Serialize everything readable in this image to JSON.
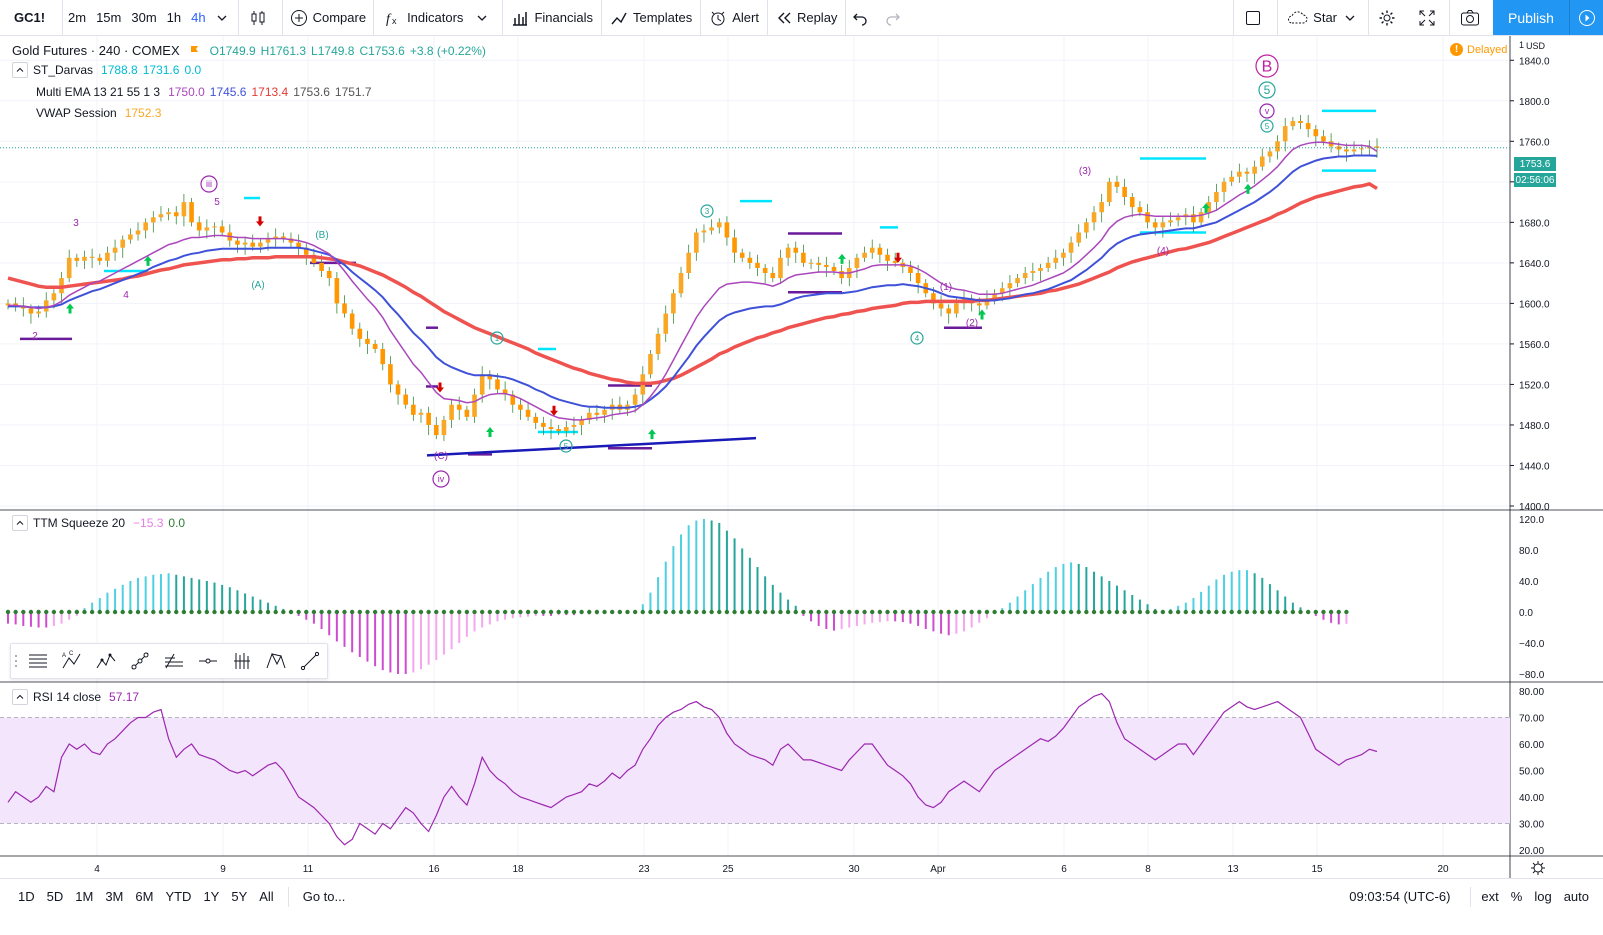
{
  "toolbar": {
    "symbol": "GC1!",
    "intervals": [
      "2m",
      "15m",
      "30m",
      "1h",
      "4h"
    ],
    "active_interval": "4h",
    "compare": "Compare",
    "indicators": "Indicators",
    "financials": "Financials",
    "templates": "Templates",
    "alert": "Alert",
    "replay": "Replay",
    "star": "Star",
    "publish": "Publish"
  },
  "legend": {
    "title": "Gold Futures · 240 · COMEX",
    "open": "O1749.9",
    "high": "H1761.3",
    "low": "L1749.8",
    "close": "C1753.6",
    "change": "+3.8 (+0.22%)",
    "darvas_name": "ST_Darvas",
    "darvas_v1": "1788.8",
    "darvas_v2": "1731.6",
    "darvas_v3": "0.0",
    "ema_name": "Multi EMA 13 21 55 1 3",
    "ema_v1": "1750.0",
    "ema_v2": "1745.6",
    "ema_v3": "1713.4",
    "ema_v4": "1753.6",
    "ema_v5": "1751.7",
    "vwap_name": "VWAP Session",
    "vwap_v": "1752.3",
    "ttm_name": "TTM Squeeze 20",
    "ttm_v1": "−15.3",
    "ttm_v2": "0.0",
    "rsi_name": "RSI 14 close",
    "rsi_v": "57.17",
    "delayed": "Delayed"
  },
  "price_axis": {
    "unit_top": "1",
    "unit": "USD",
    "labels": [
      "1840.0",
      "1800.0",
      "1760.0",
      "1720.0",
      "1680.0",
      "1640.0",
      "1600.0",
      "1560.0",
      "1520.0",
      "1480.0",
      "1440.0",
      "1400.0"
    ],
    "last_price": "1753.6",
    "countdown": "02:56:06"
  },
  "ttm_axis": {
    "labels": [
      "120.0",
      "80.0",
      "40.0",
      "0.0",
      "−40.0",
      "−80.0"
    ]
  },
  "rsi_axis": {
    "labels": [
      "80.00",
      "70.00",
      "60.00",
      "50.00",
      "40.00",
      "30.00",
      "20.00"
    ]
  },
  "time_axis": {
    "labels": [
      "4",
      "9",
      "11",
      "16",
      "18",
      "23",
      "25",
      "30",
      "Apr",
      "6",
      "8",
      "13",
      "15",
      "20"
    ]
  },
  "wave_labels": {
    "iii": "iii",
    "iv": "iv",
    "v": "v",
    "B": "B",
    "five": "5",
    "w1": "1",
    "w2": "2",
    "w3": "3",
    "w4": "4",
    "w5": "5",
    "A": "(A)",
    "Bp": "(B)",
    "C": "(C)",
    "p1": "(1)",
    "p2": "(2)",
    "p3": "(3)",
    "p4": "(4)",
    "c1": "1",
    "c3": "3",
    "c4": "4",
    "c5": "5",
    "c5b": "5"
  },
  "bottom": {
    "ranges": [
      "1D",
      "5D",
      "1M",
      "3M",
      "6M",
      "YTD",
      "1Y",
      "5Y",
      "All"
    ],
    "goto": "Go to...",
    "time": "09:03:54 (UTC-6)",
    "ext": "ext",
    "percent": "%",
    "log": "log",
    "auto": "auto"
  },
  "colors": {
    "up": "#f9a825",
    "down": "#ff9800",
    "ema13": "#ab47bc",
    "ema21": "#3f51d8",
    "ema55": "#ef5350",
    "accent": "#2196f3",
    "rsi": "#9c27b0",
    "rsi_band": "#f3e5fb"
  },
  "chart_data": {
    "type": "candlestick",
    "price_ylim": [
      1400,
      1860
    ],
    "last_close": 1753.6,
    "rsi_ylim": [
      20,
      80
    ],
    "rsi_bands": [
      30,
      70
    ],
    "ttm_ylim": [
      -80,
      120
    ],
    "close": [
      1600,
      1598,
      1595,
      1590,
      1592,
      1603,
      1610,
      1625,
      1645,
      1642,
      1646,
      1645,
      1642,
      1650,
      1655,
      1663,
      1668,
      1672,
      1680,
      1685,
      1688,
      1690,
      1686,
      1700,
      1680,
      1672,
      1675,
      1676,
      1670,
      1662,
      1658,
      1660,
      1656,
      1660,
      1664,
      1666,
      1664,
      1660,
      1655,
      1648,
      1640,
      1632,
      1625,
      1600,
      1590,
      1575,
      1565,
      1560,
      1555,
      1540,
      1520,
      1510,
      1500,
      1490,
      1492,
      1480,
      1470,
      1485,
      1500,
      1495,
      1488,
      1510,
      1530,
      1525,
      1515,
      1510,
      1500,
      1495,
      1488,
      1482,
      1478,
      1476,
      1474,
      1478,
      1480,
      1485,
      1492,
      1490,
      1495,
      1500,
      1495,
      1500,
      1510,
      1530,
      1550,
      1570,
      1590,
      1610,
      1630,
      1650,
      1670,
      1672,
      1675,
      1680,
      1665,
      1650,
      1645,
      1640,
      1635,
      1630,
      1625,
      1645,
      1655,
      1650,
      1640,
      1640,
      1638,
      1636,
      1632,
      1625,
      1635,
      1645,
      1650,
      1655,
      1648,
      1642,
      1640,
      1636,
      1630,
      1620,
      1610,
      1600,
      1595,
      1590,
      1600,
      1605,
      1600,
      1598,
      1605,
      1610,
      1615,
      1620,
      1625,
      1630,
      1632,
      1635,
      1640,
      1645,
      1650,
      1660,
      1670,
      1680,
      1690,
      1700,
      1720,
      1715,
      1705,
      1695,
      1690,
      1680,
      1675,
      1680,
      1682,
      1685,
      1688,
      1680,
      1690,
      1700,
      1710,
      1720,
      1725,
      1730,
      1728,
      1735,
      1745,
      1750,
      1760,
      1775,
      1780,
      1778,
      1772,
      1765,
      1760,
      1755,
      1752,
      1750,
      1752,
      1753,
      1755,
      1753.6
    ],
    "ema13": [
      1598,
      1598,
      1597,
      1596,
      1595,
      1596,
      1598,
      1602,
      1608,
      1612,
      1616,
      1620,
      1622,
      1626,
      1630,
      1634,
      1638,
      1642,
      1646,
      1650,
      1654,
      1658,
      1660,
      1663,
      1665,
      1665,
      1666,
      1667,
      1667,
      1666,
      1665,
      1665,
      1664,
      1664,
      1664,
      1664,
      1664,
      1663,
      1662,
      1660,
      1657,
      1653,
      1649,
      1641,
      1632,
      1622,
      1613,
      1604,
      1596,
      1586,
      1573,
      1562,
      1551,
      1540,
      1532,
      1522,
      1512,
      1506,
      1505,
      1504,
      1502,
      1503,
      1507,
      1510,
      1511,
      1511,
      1509,
      1506,
      1502,
      1498,
      1494,
      1490,
      1487,
      1486,
      1485,
      1485,
      1486,
      1487,
      1488,
      1490,
      1491,
      1492,
      1494,
      1500,
      1508,
      1518,
      1530,
      1544,
      1558,
      1572,
      1586,
      1597,
      1606,
      1615,
      1619,
      1620,
      1621,
      1621,
      1620,
      1619,
      1617,
      1620,
      1625,
      1628,
      1629,
      1630,
      1631,
      1631,
      1631,
      1630,
      1630,
      1632,
      1634,
      1637,
      1638,
      1638,
      1638,
      1638,
      1637,
      1634,
      1630,
      1625,
      1620,
      1616,
      1614,
      1613,
      1611,
      1609,
      1609,
      1609,
      1610,
      1612,
      1614,
      1616,
      1618,
      1621,
      1624,
      1627,
      1630,
      1635,
      1641,
      1648,
      1655,
      1663,
      1674,
      1681,
      1685,
      1687,
      1688,
      1687,
      1686,
      1686,
      1686,
      1686,
      1686,
      1686,
      1687,
      1689,
      1692,
      1697,
      1702,
      1707,
      1711,
      1716,
      1722,
      1728,
      1735,
      1744,
      1752,
      1756,
      1758,
      1759,
      1759,
      1758,
      1757,
      1756,
      1756,
      1756,
      1755,
      1750
    ],
    "ema21": [
      1597,
      1597,
      1597,
      1596,
      1596,
      1596,
      1597,
      1599,
      1603,
      1606,
      1609,
      1612,
      1614,
      1617,
      1620,
      1623,
      1626,
      1629,
      1632,
      1636,
      1639,
      1642,
      1644,
      1647,
      1649,
      1650,
      1652,
      1653,
      1654,
      1654,
      1654,
      1654,
      1654,
      1654,
      1655,
      1655,
      1655,
      1655,
      1655,
      1654,
      1652,
      1650,
      1648,
      1643,
      1638,
      1631,
      1625,
      1619,
      1613,
      1606,
      1597,
      1589,
      1580,
      1571,
      1564,
      1556,
      1547,
      1541,
      1537,
      1534,
      1531,
      1529,
      1529,
      1529,
      1528,
      1527,
      1525,
      1522,
      1519,
      1515,
      1512,
      1508,
      1505,
      1503,
      1501,
      1499,
      1498,
      1498,
      1497,
      1497,
      1497,
      1497,
      1498,
      1500,
      1505,
      1511,
      1518,
      1527,
      1537,
      1547,
      1558,
      1567,
      1575,
      1583,
      1588,
      1591,
      1593,
      1595,
      1596,
      1597,
      1597,
      1599,
      1602,
      1605,
      1607,
      1608,
      1609,
      1610,
      1610,
      1610,
      1611,
      1612,
      1614,
      1616,
      1617,
      1618,
      1618,
      1619,
      1618,
      1617,
      1615,
      1613,
      1610,
      1607,
      1606,
      1605,
      1604,
      1603,
      1603,
      1603,
      1604,
      1605,
      1607,
      1609,
      1610,
      1612,
      1614,
      1617,
      1620,
      1623,
      1628,
      1633,
      1639,
      1645,
      1653,
      1659,
      1663,
      1666,
      1668,
      1669,
      1670,
      1671,
      1672,
      1673,
      1674,
      1674,
      1676,
      1678,
      1680,
      1684,
      1688,
      1692,
      1696,
      1700,
      1705,
      1710,
      1716,
      1723,
      1730,
      1735,
      1738,
      1741,
      1743,
      1744,
      1745,
      1745,
      1746,
      1746,
      1746,
      1745.6
    ],
    "ema55": [
      1625,
      1623,
      1621,
      1619,
      1617,
      1616,
      1616,
      1616,
      1617,
      1618,
      1619,
      1620,
      1621,
      1622,
      1623,
      1624,
      1626,
      1627,
      1629,
      1631,
      1633,
      1634,
      1636,
      1638,
      1639,
      1640,
      1641,
      1642,
      1643,
      1643,
      1644,
      1644,
      1645,
      1645,
      1645,
      1646,
      1646,
      1646,
      1646,
      1646,
      1646,
      1645,
      1644,
      1643,
      1641,
      1639,
      1637,
      1634,
      1631,
      1628,
      1624,
      1620,
      1616,
      1611,
      1607,
      1602,
      1597,
      1592,
      1588,
      1584,
      1580,
      1576,
      1573,
      1570,
      1567,
      1564,
      1561,
      1558,
      1555,
      1551,
      1548,
      1545,
      1542,
      1539,
      1536,
      1534,
      1531,
      1529,
      1527,
      1525,
      1524,
      1522,
      1521,
      1521,
      1521,
      1522,
      1524,
      1526,
      1529,
      1533,
      1537,
      1541,
      1545,
      1550,
      1553,
      1557,
      1560,
      1563,
      1566,
      1568,
      1571,
      1573,
      1576,
      1578,
      1580,
      1582,
      1584,
      1586,
      1587,
      1589,
      1590,
      1592,
      1593,
      1595,
      1596,
      1597,
      1598,
      1600,
      1601,
      1601,
      1602,
      1602,
      1602,
      1602,
      1602,
      1602,
      1602,
      1603,
      1603,
      1604,
      1605,
      1606,
      1607,
      1608,
      1609,
      1610,
      1612,
      1613,
      1615,
      1617,
      1619,
      1622,
      1625,
      1628,
      1631,
      1635,
      1638,
      1641,
      1643,
      1645,
      1647,
      1649,
      1651,
      1653,
      1654,
      1656,
      1658,
      1660,
      1663,
      1666,
      1669,
      1672,
      1675,
      1678,
      1681,
      1684,
      1688,
      1691,
      1695,
      1699,
      1702,
      1705,
      1707,
      1709,
      1711,
      1713,
      1715,
      1716,
      1718,
      1713.4
    ],
    "rsi": [
      38,
      42,
      40,
      38,
      40,
      44,
      42,
      55,
      60,
      58,
      60,
      57,
      56,
      60,
      62,
      65,
      68,
      70,
      70,
      72,
      73,
      62,
      55,
      58,
      60,
      56,
      55,
      54,
      52,
      50,
      49,
      50,
      48,
      50,
      52,
      53,
      50,
      45,
      40,
      38,
      36,
      33,
      30,
      25,
      22,
      24,
      30,
      28,
      26,
      30,
      28,
      32,
      36,
      34,
      30,
      27,
      33,
      40,
      44,
      40,
      37,
      45,
      55,
      50,
      47,
      45,
      42,
      40,
      39,
      38,
      37,
      36,
      38,
      40,
      41,
      42,
      45,
      44,
      46,
      49,
      47,
      50,
      52,
      58,
      62,
      67,
      70,
      72,
      73,
      75,
      76,
      74,
      73,
      70,
      64,
      60,
      58,
      56,
      55,
      54,
      52,
      58,
      60,
      57,
      54,
      54,
      53,
      52,
      51,
      50,
      54,
      57,
      60,
      60,
      56,
      52,
      50,
      48,
      45,
      40,
      37,
      36,
      38,
      42,
      44,
      46,
      44,
      42,
      46,
      50,
      52,
      54,
      56,
      58,
      60,
      62,
      61,
      63,
      66,
      70,
      74,
      76,
      78,
      79,
      76,
      68,
      62,
      60,
      58,
      56,
      54,
      56,
      58,
      60,
      60,
      56,
      60,
      64,
      68,
      72,
      74,
      76,
      74,
      73,
      74,
      75,
      76,
      74,
      72,
      70,
      64,
      58,
      56,
      54,
      52,
      54,
      55,
      56,
      58,
      57.17
    ],
    "ttm": [
      -15,
      -16,
      -18,
      -19,
      -20,
      -20,
      -18,
      -15,
      -10,
      -5,
      5,
      12,
      18,
      25,
      30,
      35,
      40,
      44,
      46,
      48,
      49,
      50,
      48,
      46,
      44,
      42,
      40,
      38,
      35,
      32,
      28,
      24,
      20,
      16,
      12,
      8,
      4,
      0,
      -5,
      -10,
      -15,
      -22,
      -30,
      -38,
      -45,
      -52,
      -58,
      -64,
      -70,
      -75,
      -78,
      -80,
      -80,
      -78,
      -74,
      -68,
      -62,
      -55,
      -48,
      -40,
      -32,
      -25,
      -20,
      -16,
      -12,
      -10,
      -8,
      -7,
      -6,
      -5,
      -5,
      -5,
      -4,
      -4,
      -4,
      -3,
      -3,
      -3,
      -2,
      -2,
      -2,
      -2,
      -1,
      10,
      25,
      45,
      65,
      85,
      100,
      112,
      118,
      120,
      118,
      115,
      105,
      95,
      82,
      70,
      58,
      46,
      35,
      25,
      16,
      8,
      -5,
      -12,
      -18,
      -22,
      -24,
      -22,
      -20,
      -18,
      -16,
      -14,
      -13,
      -12,
      -12,
      -13,
      -15,
      -18,
      -22,
      -25,
      -28,
      -30,
      -28,
      -25,
      -20,
      -14,
      -8,
      -2,
      5,
      12,
      20,
      28,
      36,
      44,
      52,
      58,
      62,
      64,
      62,
      58,
      52,
      46,
      40,
      34,
      28,
      22,
      16,
      10,
      4,
      2,
      4,
      8,
      12,
      18,
      26,
      34,
      42,
      48,
      52,
      54,
      54,
      50,
      44,
      36,
      28,
      20,
      12,
      6,
      2,
      -5,
      -10,
      -14,
      -16,
      -15.3
    ],
    "time_ticks": [
      "4",
      "9",
      "11",
      "16",
      "18",
      "23",
      "25",
      "30",
      "Apr",
      "6",
      "8",
      "13",
      "15",
      "20"
    ]
  }
}
